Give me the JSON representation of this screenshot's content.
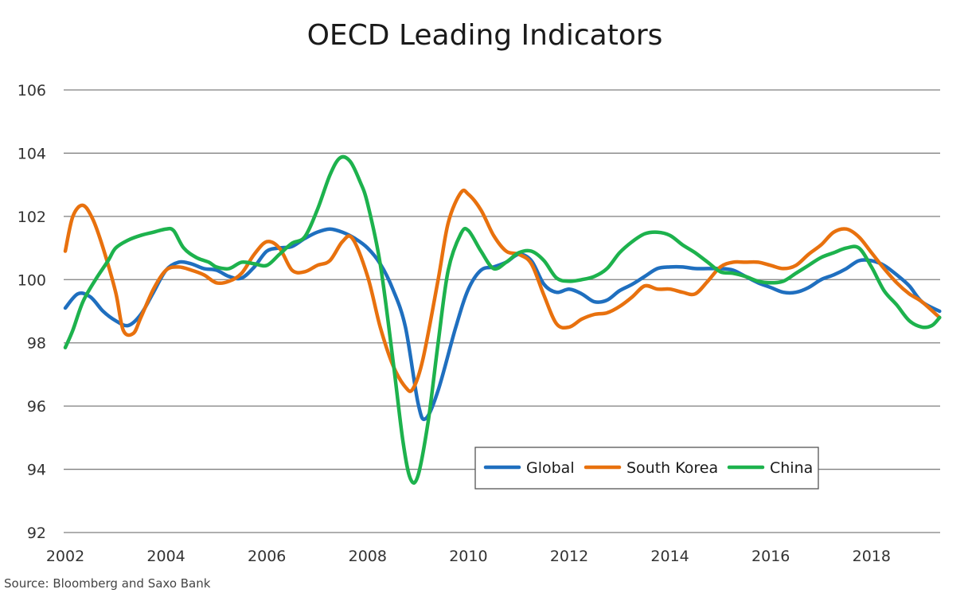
{
  "chart_data": {
    "type": "line",
    "title": "OECD Leading Indicators",
    "xlabel": "",
    "ylabel": "",
    "xlim": [
      2002,
      2019.4
    ],
    "ylim": [
      92,
      106
    ],
    "x_ticks": [
      "2002",
      "2004",
      "2006",
      "2008",
      "2010",
      "2012",
      "2014",
      "2016",
      "2018"
    ],
    "y_ticks": [
      "92",
      "94",
      "96",
      "98",
      "100",
      "102",
      "104",
      "106"
    ],
    "grid": true,
    "legend_position": "bottom-right",
    "source": "Source: Bloomberg and Saxo Bank",
    "series": [
      {
        "name": "Global",
        "color": "#1f6fbf",
        "points": [
          [
            2002.0,
            99.1
          ],
          [
            2002.25,
            99.55
          ],
          [
            2002.5,
            99.45
          ],
          [
            2002.75,
            99.0
          ],
          [
            2003.0,
            98.7
          ],
          [
            2003.25,
            98.55
          ],
          [
            2003.5,
            98.9
          ],
          [
            2003.75,
            99.6
          ],
          [
            2004.0,
            100.3
          ],
          [
            2004.25,
            100.55
          ],
          [
            2004.5,
            100.5
          ],
          [
            2004.75,
            100.35
          ],
          [
            2005.0,
            100.3
          ],
          [
            2005.25,
            100.1
          ],
          [
            2005.5,
            100.05
          ],
          [
            2005.75,
            100.4
          ],
          [
            2006.0,
            100.9
          ],
          [
            2006.25,
            101.0
          ],
          [
            2006.5,
            101.05
          ],
          [
            2006.75,
            101.3
          ],
          [
            2007.0,
            101.5
          ],
          [
            2007.25,
            101.6
          ],
          [
            2007.5,
            101.5
          ],
          [
            2007.75,
            101.3
          ],
          [
            2008.0,
            101.0
          ],
          [
            2008.25,
            100.5
          ],
          [
            2008.5,
            99.7
          ],
          [
            2008.75,
            98.5
          ],
          [
            2009.0,
            96.1
          ],
          [
            2009.15,
            95.6
          ],
          [
            2009.4,
            96.5
          ],
          [
            2009.75,
            98.5
          ],
          [
            2010.0,
            99.7
          ],
          [
            2010.25,
            100.3
          ],
          [
            2010.5,
            100.4
          ],
          [
            2010.75,
            100.55
          ],
          [
            2011.0,
            100.8
          ],
          [
            2011.25,
            100.6
          ],
          [
            2011.5,
            99.85
          ],
          [
            2011.75,
            99.6
          ],
          [
            2012.0,
            99.7
          ],
          [
            2012.25,
            99.55
          ],
          [
            2012.5,
            99.3
          ],
          [
            2012.75,
            99.35
          ],
          [
            2013.0,
            99.65
          ],
          [
            2013.25,
            99.85
          ],
          [
            2013.5,
            100.1
          ],
          [
            2013.75,
            100.35
          ],
          [
            2014.0,
            100.4
          ],
          [
            2014.25,
            100.4
          ],
          [
            2014.5,
            100.35
          ],
          [
            2014.75,
            100.35
          ],
          [
            2015.0,
            100.35
          ],
          [
            2015.25,
            100.3
          ],
          [
            2015.5,
            100.1
          ],
          [
            2015.75,
            99.9
          ],
          [
            2016.0,
            99.75
          ],
          [
            2016.25,
            99.6
          ],
          [
            2016.5,
            99.6
          ],
          [
            2016.75,
            99.75
          ],
          [
            2017.0,
            100.0
          ],
          [
            2017.25,
            100.15
          ],
          [
            2017.5,
            100.35
          ],
          [
            2017.75,
            100.6
          ],
          [
            2018.0,
            100.6
          ],
          [
            2018.25,
            100.45
          ],
          [
            2018.5,
            100.15
          ],
          [
            2018.75,
            99.8
          ],
          [
            2019.0,
            99.3
          ],
          [
            2019.35,
            99.0
          ]
        ]
      },
      {
        "name": "South Korea",
        "color": "#e8710e",
        "points": [
          [
            2002.0,
            100.9
          ],
          [
            2002.15,
            102.0
          ],
          [
            2002.35,
            102.35
          ],
          [
            2002.55,
            101.9
          ],
          [
            2002.75,
            101.0
          ],
          [
            2003.0,
            99.6
          ],
          [
            2003.15,
            98.4
          ],
          [
            2003.35,
            98.3
          ],
          [
            2003.5,
            98.8
          ],
          [
            2003.75,
            99.7
          ],
          [
            2004.0,
            100.3
          ],
          [
            2004.25,
            100.4
          ],
          [
            2004.5,
            100.3
          ],
          [
            2004.75,
            100.15
          ],
          [
            2005.0,
            99.9
          ],
          [
            2005.25,
            99.95
          ],
          [
            2005.5,
            100.2
          ],
          [
            2005.75,
            100.8
          ],
          [
            2006.0,
            101.2
          ],
          [
            2006.25,
            101.0
          ],
          [
            2006.5,
            100.3
          ],
          [
            2006.75,
            100.25
          ],
          [
            2007.0,
            100.45
          ],
          [
            2007.25,
            100.6
          ],
          [
            2007.5,
            101.2
          ],
          [
            2007.7,
            101.3
          ],
          [
            2008.0,
            100.1
          ],
          [
            2008.25,
            98.5
          ],
          [
            2008.5,
            97.3
          ],
          [
            2008.75,
            96.6
          ],
          [
            2008.9,
            96.55
          ],
          [
            2009.1,
            97.5
          ],
          [
            2009.4,
            100.0
          ],
          [
            2009.6,
            101.8
          ],
          [
            2009.85,
            102.75
          ],
          [
            2010.0,
            102.7
          ],
          [
            2010.25,
            102.2
          ],
          [
            2010.5,
            101.4
          ],
          [
            2010.75,
            100.9
          ],
          [
            2011.0,
            100.8
          ],
          [
            2011.25,
            100.5
          ],
          [
            2011.5,
            99.5
          ],
          [
            2011.75,
            98.6
          ],
          [
            2012.0,
            98.5
          ],
          [
            2012.25,
            98.75
          ],
          [
            2012.5,
            98.9
          ],
          [
            2012.75,
            98.95
          ],
          [
            2013.0,
            99.15
          ],
          [
            2013.25,
            99.45
          ],
          [
            2013.5,
            99.8
          ],
          [
            2013.75,
            99.7
          ],
          [
            2014.0,
            99.7
          ],
          [
            2014.25,
            99.6
          ],
          [
            2014.5,
            99.55
          ],
          [
            2014.75,
            99.95
          ],
          [
            2015.0,
            100.4
          ],
          [
            2015.25,
            100.55
          ],
          [
            2015.5,
            100.55
          ],
          [
            2015.75,
            100.55
          ],
          [
            2016.0,
            100.45
          ],
          [
            2016.25,
            100.35
          ],
          [
            2016.5,
            100.45
          ],
          [
            2016.75,
            100.8
          ],
          [
            2017.0,
            101.1
          ],
          [
            2017.25,
            101.5
          ],
          [
            2017.5,
            101.6
          ],
          [
            2017.75,
            101.35
          ],
          [
            2018.0,
            100.85
          ],
          [
            2018.25,
            100.35
          ],
          [
            2018.5,
            99.9
          ],
          [
            2018.75,
            99.55
          ],
          [
            2019.0,
            99.3
          ],
          [
            2019.35,
            98.8
          ]
        ]
      },
      {
        "name": "China",
        "color": "#1db24d",
        "points": [
          [
            2002.0,
            97.85
          ],
          [
            2002.15,
            98.4
          ],
          [
            2002.35,
            99.3
          ],
          [
            2002.6,
            100.0
          ],
          [
            2002.85,
            100.6
          ],
          [
            2003.0,
            101.0
          ],
          [
            2003.25,
            101.25
          ],
          [
            2003.5,
            101.4
          ],
          [
            2003.75,
            101.5
          ],
          [
            2004.0,
            101.6
          ],
          [
            2004.15,
            101.55
          ],
          [
            2004.35,
            101.0
          ],
          [
            2004.6,
            100.7
          ],
          [
            2004.85,
            100.55
          ],
          [
            2005.0,
            100.4
          ],
          [
            2005.25,
            100.35
          ],
          [
            2005.5,
            100.55
          ],
          [
            2005.75,
            100.5
          ],
          [
            2006.0,
            100.45
          ],
          [
            2006.25,
            100.8
          ],
          [
            2006.5,
            101.15
          ],
          [
            2006.75,
            101.35
          ],
          [
            2007.0,
            102.2
          ],
          [
            2007.25,
            103.3
          ],
          [
            2007.45,
            103.85
          ],
          [
            2007.65,
            103.75
          ],
          [
            2007.85,
            103.1
          ],
          [
            2008.0,
            102.4
          ],
          [
            2008.25,
            100.5
          ],
          [
            2008.5,
            97.5
          ],
          [
            2008.7,
            94.9
          ],
          [
            2008.85,
            93.7
          ],
          [
            2009.0,
            93.8
          ],
          [
            2009.2,
            95.5
          ],
          [
            2009.4,
            98.0
          ],
          [
            2009.6,
            100.3
          ],
          [
            2009.85,
            101.45
          ],
          [
            2010.0,
            101.55
          ],
          [
            2010.25,
            100.9
          ],
          [
            2010.5,
            100.35
          ],
          [
            2010.75,
            100.55
          ],
          [
            2011.0,
            100.85
          ],
          [
            2011.25,
            100.9
          ],
          [
            2011.5,
            100.6
          ],
          [
            2011.75,
            100.05
          ],
          [
            2012.0,
            99.95
          ],
          [
            2012.25,
            100.0
          ],
          [
            2012.5,
            100.1
          ],
          [
            2012.75,
            100.35
          ],
          [
            2013.0,
            100.85
          ],
          [
            2013.25,
            101.2
          ],
          [
            2013.5,
            101.45
          ],
          [
            2013.75,
            101.5
          ],
          [
            2014.0,
            101.4
          ],
          [
            2014.25,
            101.1
          ],
          [
            2014.5,
            100.85
          ],
          [
            2014.75,
            100.55
          ],
          [
            2015.0,
            100.25
          ],
          [
            2015.25,
            100.2
          ],
          [
            2015.5,
            100.1
          ],
          [
            2015.75,
            99.95
          ],
          [
            2016.0,
            99.9
          ],
          [
            2016.25,
            99.95
          ],
          [
            2016.5,
            100.2
          ],
          [
            2016.75,
            100.45
          ],
          [
            2017.0,
            100.7
          ],
          [
            2017.25,
            100.85
          ],
          [
            2017.5,
            101.0
          ],
          [
            2017.75,
            101.0
          ],
          [
            2018.0,
            100.4
          ],
          [
            2018.25,
            99.65
          ],
          [
            2018.5,
            99.2
          ],
          [
            2018.75,
            98.7
          ],
          [
            2019.0,
            98.5
          ],
          [
            2019.2,
            98.55
          ],
          [
            2019.35,
            98.8
          ]
        ]
      }
    ]
  }
}
